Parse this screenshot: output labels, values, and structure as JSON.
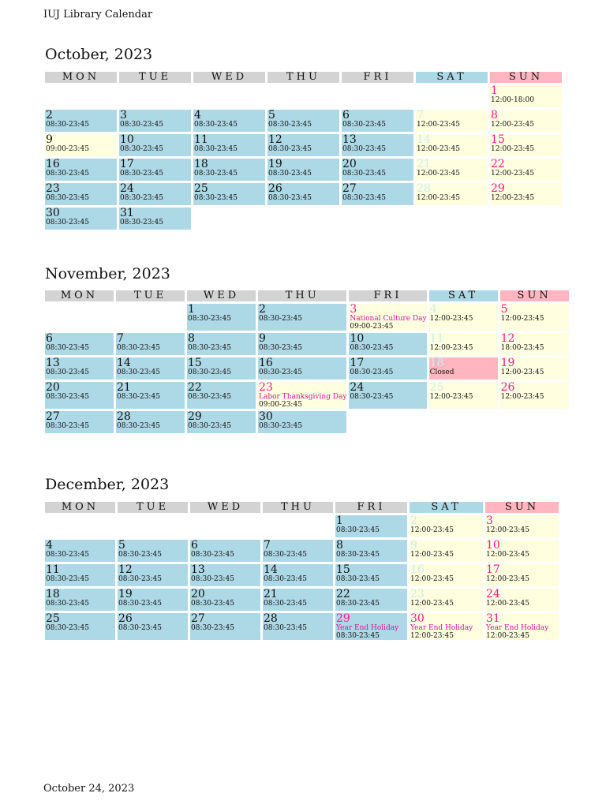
{
  "doc_title": "IUJ Library Calendar",
  "footer_date": "October 24, 2023",
  "weekdays": [
    "MON",
    "TUE",
    "WED",
    "THU",
    "FRI",
    "SAT",
    "SUN"
  ],
  "colors": {
    "open": "#add8e6",
    "weekend": "#ffffe0",
    "closed": "#ffb6c1",
    "header": "#d3d3d3",
    "sunday_text": "#ff1493",
    "saturday_text": "#c8ecec",
    "note_text": "#d01599"
  },
  "months": [
    {
      "title": "October, 2023",
      "weeks": [
        [
          null,
          null,
          null,
          null,
          null,
          null,
          {
            "day": "1",
            "hours": "12:00-18:00",
            "type": "weekend",
            "dtype": "sun"
          }
        ],
        [
          {
            "day": "2",
            "hours": "08:30-23:45",
            "type": "open"
          },
          {
            "day": "3",
            "hours": "08:30-23:45",
            "type": "open"
          },
          {
            "day": "4",
            "hours": "08:30-23:45",
            "type": "open"
          },
          {
            "day": "5",
            "hours": "08:30-23:45",
            "type": "open"
          },
          {
            "day": "6",
            "hours": "08:30-23:45",
            "type": "open"
          },
          {
            "day": "7",
            "hours": "12:00-23:45",
            "type": "weekend",
            "dtype": "sat"
          },
          {
            "day": "8",
            "hours": "12:00-23:45",
            "type": "weekend",
            "dtype": "sun"
          }
        ],
        [
          {
            "day": "9",
            "hours": "09:00-23:45",
            "type": "weekend"
          },
          {
            "day": "10",
            "hours": "08:30-23:45",
            "type": "open"
          },
          {
            "day": "11",
            "hours": "08:30-23:45",
            "type": "open"
          },
          {
            "day": "12",
            "hours": "08:30-23:45",
            "type": "open"
          },
          {
            "day": "13",
            "hours": "08:30-23:45",
            "type": "open"
          },
          {
            "day": "14",
            "hours": "12:00-23:45",
            "type": "weekend",
            "dtype": "sat"
          },
          {
            "day": "15",
            "hours": "12:00-23:45",
            "type": "weekend",
            "dtype": "sun"
          }
        ],
        [
          {
            "day": "16",
            "hours": "08:30-23:45",
            "type": "open"
          },
          {
            "day": "17",
            "hours": "08:30-23:45",
            "type": "open"
          },
          {
            "day": "18",
            "hours": "08:30-23:45",
            "type": "open"
          },
          {
            "day": "19",
            "hours": "08:30-23:45",
            "type": "open"
          },
          {
            "day": "20",
            "hours": "08:30-23:45",
            "type": "open"
          },
          {
            "day": "21",
            "hours": "12:00-23:45",
            "type": "weekend",
            "dtype": "sat"
          },
          {
            "day": "22",
            "hours": "12:00-23:45",
            "type": "weekend",
            "dtype": "sun"
          }
        ],
        [
          {
            "day": "23",
            "hours": "08:30-23:45",
            "type": "open"
          },
          {
            "day": "24",
            "hours": "08:30-23:45",
            "type": "open"
          },
          {
            "day": "25",
            "hours": "08:30-23:45",
            "type": "open"
          },
          {
            "day": "26",
            "hours": "08:30-23:45",
            "type": "open"
          },
          {
            "day": "27",
            "hours": "08:30-23:45",
            "type": "open"
          },
          {
            "day": "28",
            "hours": "12:00-23:45",
            "type": "weekend",
            "dtype": "sat"
          },
          {
            "day": "29",
            "hours": "12:00-23:45",
            "type": "weekend",
            "dtype": "sun"
          }
        ],
        [
          {
            "day": "30",
            "hours": "08:30-23:45",
            "type": "open"
          },
          {
            "day": "31",
            "hours": "08:30-23:45",
            "type": "open"
          },
          null,
          null,
          null,
          null,
          null
        ]
      ]
    },
    {
      "title": "November, 2023",
      "weeks": [
        [
          null,
          null,
          {
            "day": "1",
            "hours": "08:30-23:45",
            "type": "open"
          },
          {
            "day": "2",
            "hours": "08:30-23:45",
            "type": "open"
          },
          {
            "day": "3",
            "note": "National Culture Day",
            "hours": "09:00-23:45",
            "type": "weekend",
            "dtype": "hol"
          },
          {
            "day": "4",
            "hours": "12:00-23:45",
            "type": "weekend",
            "dtype": "sat"
          },
          {
            "day": "5",
            "hours": "12:00-23:45",
            "type": "weekend",
            "dtype": "sun"
          }
        ],
        [
          {
            "day": "6",
            "hours": "08:30-23:45",
            "type": "open"
          },
          {
            "day": "7",
            "hours": "08:30-23:45",
            "type": "open"
          },
          {
            "day": "8",
            "hours": "08:30-23:45",
            "type": "open"
          },
          {
            "day": "9",
            "hours": "08:30-23:45",
            "type": "open"
          },
          {
            "day": "10",
            "hours": "08:30-23:45",
            "type": "open"
          },
          {
            "day": "11",
            "hours": "12:00-23:45",
            "type": "weekend",
            "dtype": "sat"
          },
          {
            "day": "12",
            "hours": "18:00-23:45",
            "type": "weekend",
            "dtype": "sun"
          }
        ],
        [
          {
            "day": "13",
            "hours": "08:30-23:45",
            "type": "open"
          },
          {
            "day": "14",
            "hours": "08:30-23:45",
            "type": "open"
          },
          {
            "day": "15",
            "hours": "08:30-23:45",
            "type": "open"
          },
          {
            "day": "16",
            "hours": "08:30-23:45",
            "type": "open"
          },
          {
            "day": "17",
            "hours": "08:30-23:45",
            "type": "open"
          },
          {
            "day": "18",
            "hours": "Closed",
            "type": "closed",
            "dtype": "sat"
          },
          {
            "day": "19",
            "hours": "12:00-23:45",
            "type": "weekend",
            "dtype": "sun"
          }
        ],
        [
          {
            "day": "20",
            "hours": "08:30-23:45",
            "type": "open"
          },
          {
            "day": "21",
            "hours": "08:30-23:45",
            "type": "open"
          },
          {
            "day": "22",
            "hours": "08:30-23:45",
            "type": "open"
          },
          {
            "day": "23",
            "note": "Labor Thanksgiving Day",
            "hours": "09:00-23:45",
            "type": "weekend",
            "dtype": "hol"
          },
          {
            "day": "24",
            "hours": "08:30-23:45",
            "type": "open"
          },
          {
            "day": "25",
            "hours": "12:00-23:45",
            "type": "weekend",
            "dtype": "sat"
          },
          {
            "day": "26",
            "hours": "12:00-23:45",
            "type": "weekend",
            "dtype": "sun"
          }
        ],
        [
          {
            "day": "27",
            "hours": "08:30-23:45",
            "type": "open"
          },
          {
            "day": "28",
            "hours": "08:30-23:45",
            "type": "open"
          },
          {
            "day": "29",
            "hours": "08:30-23:45",
            "type": "open"
          },
          {
            "day": "30",
            "hours": "08:30-23:45",
            "type": "open"
          },
          null,
          null,
          null
        ]
      ]
    },
    {
      "title": "December, 2023",
      "weeks": [
        [
          null,
          null,
          null,
          null,
          {
            "day": "1",
            "hours": "08:30-23:45",
            "type": "open"
          },
          {
            "day": "2",
            "hours": "12:00-23:45",
            "type": "weekend",
            "dtype": "sat"
          },
          {
            "day": "3",
            "hours": "12:00-23:45",
            "type": "weekend",
            "dtype": "sun"
          }
        ],
        [
          {
            "day": "4",
            "hours": "08:30-23:45",
            "type": "open"
          },
          {
            "day": "5",
            "hours": "08:30-23:45",
            "type": "open"
          },
          {
            "day": "6",
            "hours": "08:30-23:45",
            "type": "open"
          },
          {
            "day": "7",
            "hours": "08:30-23:45",
            "type": "open"
          },
          {
            "day": "8",
            "hours": "08:30-23:45",
            "type": "open"
          },
          {
            "day": "9",
            "hours": "12:00-23:45",
            "type": "weekend",
            "dtype": "sat"
          },
          {
            "day": "10",
            "hours": "12:00-23:45",
            "type": "weekend",
            "dtype": "sun"
          }
        ],
        [
          {
            "day": "11",
            "hours": "08:30-23:45",
            "type": "open"
          },
          {
            "day": "12",
            "hours": "08:30-23:45",
            "type": "open"
          },
          {
            "day": "13",
            "hours": "08:30-23:45",
            "type": "open"
          },
          {
            "day": "14",
            "hours": "08:30-23:45",
            "type": "open"
          },
          {
            "day": "15",
            "hours": "08:30-23:45",
            "type": "open"
          },
          {
            "day": "16",
            "hours": "12:00-23:45",
            "type": "weekend",
            "dtype": "sat"
          },
          {
            "day": "17",
            "hours": "12:00-23:45",
            "type": "weekend",
            "dtype": "sun"
          }
        ],
        [
          {
            "day": "18",
            "hours": "08:30-23:45",
            "type": "open"
          },
          {
            "day": "19",
            "hours": "08:30-23:45",
            "type": "open"
          },
          {
            "day": "20",
            "hours": "08:30-23:45",
            "type": "open"
          },
          {
            "day": "21",
            "hours": "08:30-23:45",
            "type": "open"
          },
          {
            "day": "22",
            "hours": "08:30-23:45",
            "type": "open"
          },
          {
            "day": "23",
            "hours": "12:00-23:45",
            "type": "weekend",
            "dtype": "sat"
          },
          {
            "day": "24",
            "hours": "12:00-23:45",
            "type": "weekend",
            "dtype": "sun"
          }
        ],
        [
          {
            "day": "25",
            "hours": "08:30-23:45",
            "type": "open"
          },
          {
            "day": "26",
            "hours": "08:30-23:45",
            "type": "open"
          },
          {
            "day": "27",
            "hours": "08:30-23:45",
            "type": "open"
          },
          {
            "day": "28",
            "hours": "08:30-23:45",
            "type": "open"
          },
          {
            "day": "29",
            "note": "Year End Holiday",
            "hours": "08:30-23:45",
            "type": "open",
            "dtype": "hol"
          },
          {
            "day": "30",
            "note": "Year End Holiday",
            "hours": "12:00-23:45",
            "type": "weekend",
            "dtype": "sun"
          },
          {
            "day": "31",
            "note": "Year End Holiday",
            "hours": "12:00-23:45",
            "type": "weekend",
            "dtype": "sun"
          }
        ]
      ]
    }
  ]
}
